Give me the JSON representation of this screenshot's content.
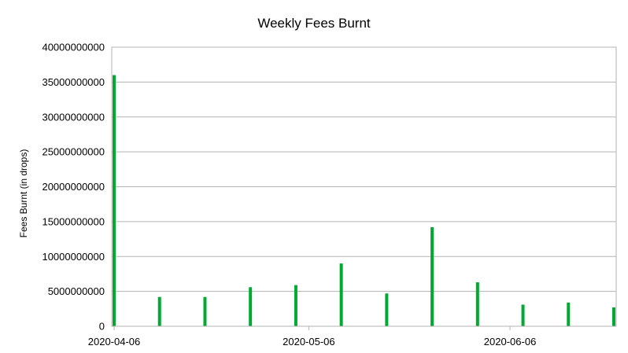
{
  "chart_data": {
    "type": "bar",
    "title": "Weekly Fees Burnt",
    "xlabel": "",
    "ylabel": "Fees Burnt (in drops)",
    "x_ticks": [
      "2020-04-06",
      "2020-05-06",
      "2020-06-06"
    ],
    "x_tick_dates": [
      "2020-04-06",
      "2020-05-06",
      "2020-06-06"
    ],
    "x_range": [
      "2020-04-06",
      "2020-06-22"
    ],
    "ylim": [
      0,
      40000000000
    ],
    "y_ticks": [
      "0",
      "5000000000",
      "10000000000",
      "15000000000",
      "20000000000",
      "25000000000",
      "30000000000",
      "35000000000",
      "40000000000"
    ],
    "grid": true,
    "bar_color": "#00a933",
    "series": [
      {
        "x": [
          "2020-04-06",
          "2020-04-13",
          "2020-04-20",
          "2020-04-27",
          "2020-05-04",
          "2020-05-11",
          "2020-05-18",
          "2020-05-25",
          "2020-06-01",
          "2020-06-08",
          "2020-06-15",
          "2020-06-22"
        ],
        "values": [
          36000000000,
          4200000000,
          4200000000,
          5600000000,
          5900000000,
          9000000000,
          4700000000,
          14200000000,
          6300000000,
          3100000000,
          3400000000,
          2700000000
        ]
      }
    ]
  }
}
